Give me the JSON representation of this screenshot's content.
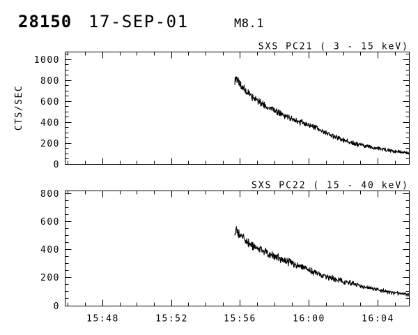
{
  "header": {
    "sequence_number": "28150",
    "date": "17-SEP-01",
    "flare_class": "M8.1"
  },
  "colors": {
    "foreground": "#000000",
    "background": "#ffffff"
  },
  "x_axis": {
    "base_time": "15:44",
    "unit": "minutes_after_base",
    "labels": [
      "15:48",
      "15:52",
      "15:56",
      "16:00",
      "16:04"
    ]
  },
  "chart_data": [
    {
      "type": "line",
      "title": "SXS PC21 (  3 - 15 keV)",
      "ylabel": "CTS/SEC",
      "ylim": [
        0,
        1073
      ],
      "y_major_step": 200,
      "y_minor_step": 50,
      "y_tick_labels": [
        "0",
        "200",
        "400",
        "600",
        "800",
        "1000"
      ],
      "xlim": [
        1.82,
        21.82
      ],
      "x_minor_step": 1,
      "x_ticks": [
        {
          "t": 4,
          "label": "15:48"
        },
        {
          "t": 8,
          "label": "15:52"
        },
        {
          "t": 12,
          "label": "15:56"
        },
        {
          "t": 16,
          "label": "16:00"
        },
        {
          "t": 20,
          "label": "16:04"
        }
      ],
      "grid": false,
      "legend": false,
      "noise_coeff": 1.8,
      "series": [
        {
          "name": "SXS PC21 3-15 keV",
          "t": [
            11.7,
            11.76,
            11.85,
            12.0,
            12.4,
            12.8,
            13.2,
            13.6,
            14.0,
            14.5,
            15.0,
            15.5,
            16.0,
            16.5,
            17.0,
            17.5,
            18.0,
            18.5,
            19.0,
            19.5,
            20.0,
            20.5,
            21.0,
            21.4,
            21.82
          ],
          "v": [
            780,
            840,
            800,
            755,
            690,
            635,
            585,
            545,
            510,
            470,
            432,
            400,
            372,
            338,
            300,
            262,
            228,
            205,
            185,
            165,
            148,
            133,
            120,
            112,
            105
          ]
        }
      ]
    },
    {
      "type": "line",
      "title": "SXS PC22 ( 15 - 40 keV)",
      "ylabel": "",
      "ylim": [
        0,
        822
      ],
      "y_major_step": 200,
      "y_minor_step": 50,
      "y_tick_labels": [
        "0",
        "200",
        "400",
        "600",
        "800"
      ],
      "xlim": [
        1.82,
        21.82
      ],
      "x_minor_step": 1,
      "x_ticks": [
        {
          "t": 4,
          "label": "15:48"
        },
        {
          "t": 8,
          "label": "15:52"
        },
        {
          "t": 12,
          "label": "15:56"
        },
        {
          "t": 16,
          "label": "16:00"
        },
        {
          "t": 20,
          "label": "16:04"
        }
      ],
      "grid": false,
      "legend": false,
      "noise_coeff": 1.8,
      "series": [
        {
          "name": "SXS PC22 15-40 keV",
          "t": [
            11.7,
            11.76,
            11.85,
            12.0,
            12.4,
            12.8,
            13.2,
            13.6,
            14.0,
            14.5,
            15.0,
            15.5,
            16.0,
            16.5,
            17.0,
            17.5,
            18.0,
            18.5,
            19.0,
            19.5,
            20.0,
            20.5,
            21.0,
            21.4,
            21.82
          ],
          "v": [
            515,
            560,
            530,
            498,
            458,
            425,
            398,
            375,
            352,
            325,
            300,
            276,
            252,
            228,
            206,
            188,
            170,
            155,
            140,
            126,
            112,
            100,
            90,
            84,
            78
          ]
        }
      ]
    }
  ]
}
